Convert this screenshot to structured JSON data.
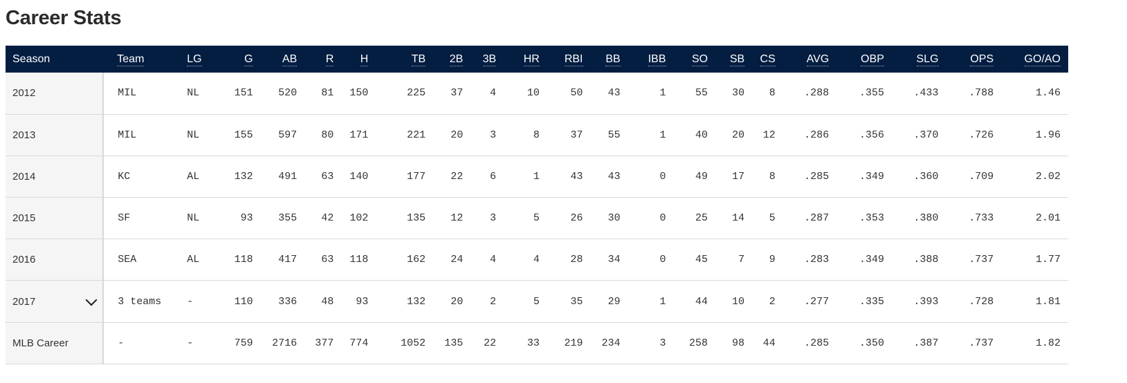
{
  "title": "Career Stats",
  "columns": [
    "Season",
    "Team",
    "LG",
    "G",
    "AB",
    "R",
    "H",
    "TB",
    "2B",
    "3B",
    "HR",
    "RBI",
    "BB",
    "IBB",
    "SO",
    "SB",
    "CS",
    "AVG",
    "OBP",
    "SLG",
    "OPS",
    "GO/AO"
  ],
  "rows": [
    {
      "season": "2012",
      "team": "MIL",
      "lg": "NL",
      "g": "151",
      "ab": "520",
      "r": "81",
      "h": "150",
      "tb": "225",
      "b2": "37",
      "b3": "4",
      "hr": "10",
      "rbi": "50",
      "bb": "43",
      "ibb": "1",
      "so": "55",
      "sb": "30",
      "cs": "8",
      "avg": ".288",
      "obp": ".355",
      "slg": ".433",
      "ops": ".788",
      "goao": "1.46"
    },
    {
      "season": "2013",
      "team": "MIL",
      "lg": "NL",
      "g": "155",
      "ab": "597",
      "r": "80",
      "h": "171",
      "tb": "221",
      "b2": "20",
      "b3": "3",
      "hr": "8",
      "rbi": "37",
      "bb": "55",
      "ibb": "1",
      "so": "40",
      "sb": "20",
      "cs": "12",
      "avg": ".286",
      "obp": ".356",
      "slg": ".370",
      "ops": ".726",
      "goao": "1.96"
    },
    {
      "season": "2014",
      "team": "KC",
      "lg": "AL",
      "g": "132",
      "ab": "491",
      "r": "63",
      "h": "140",
      "tb": "177",
      "b2": "22",
      "b3": "6",
      "hr": "1",
      "rbi": "43",
      "bb": "43",
      "ibb": "0",
      "so": "49",
      "sb": "17",
      "cs": "8",
      "avg": ".285",
      "obp": ".349",
      "slg": ".360",
      "ops": ".709",
      "goao": "2.02"
    },
    {
      "season": "2015",
      "team": "SF",
      "lg": "NL",
      "g": "93",
      "ab": "355",
      "r": "42",
      "h": "102",
      "tb": "135",
      "b2": "12",
      "b3": "3",
      "hr": "5",
      "rbi": "26",
      "bb": "30",
      "ibb": "0",
      "so": "25",
      "sb": "14",
      "cs": "5",
      "avg": ".287",
      "obp": ".353",
      "slg": ".380",
      "ops": ".733",
      "goao": "2.01"
    },
    {
      "season": "2016",
      "team": "SEA",
      "lg": "AL",
      "g": "118",
      "ab": "417",
      "r": "63",
      "h": "118",
      "tb": "162",
      "b2": "24",
      "b3": "4",
      "hr": "4",
      "rbi": "28",
      "bb": "34",
      "ibb": "0",
      "so": "45",
      "sb": "7",
      "cs": "9",
      "avg": ".283",
      "obp": ".349",
      "slg": ".388",
      "ops": ".737",
      "goao": "1.77"
    },
    {
      "season": "2017",
      "team": "3 teams",
      "lg": "-",
      "g": "110",
      "ab": "336",
      "r": "48",
      "h": "93",
      "tb": "132",
      "b2": "20",
      "b3": "2",
      "hr": "5",
      "rbi": "35",
      "bb": "29",
      "ibb": "1",
      "so": "44",
      "sb": "10",
      "cs": "2",
      "avg": ".277",
      "obp": ".335",
      "slg": ".393",
      "ops": ".728",
      "goao": "1.81",
      "expandable": true
    },
    {
      "season": "MLB Career",
      "team": "-",
      "lg": "-",
      "g": "759",
      "ab": "2716",
      "r": "377",
      "h": "774",
      "tb": "1052",
      "b2": "135",
      "b3": "22",
      "hr": "33",
      "rbi": "219",
      "bb": "234",
      "ibb": "3",
      "so": "258",
      "sb": "98",
      "cs": "44",
      "avg": ".285",
      "obp": ".350",
      "slg": ".387",
      "ops": ".737",
      "goao": "1.82"
    }
  ],
  "icons": {
    "expand": "chevron-down-icon"
  },
  "colors": {
    "header_bg": "#041e42",
    "header_text": "#ffffff",
    "season_cell_bg": "#f5f5f5"
  }
}
